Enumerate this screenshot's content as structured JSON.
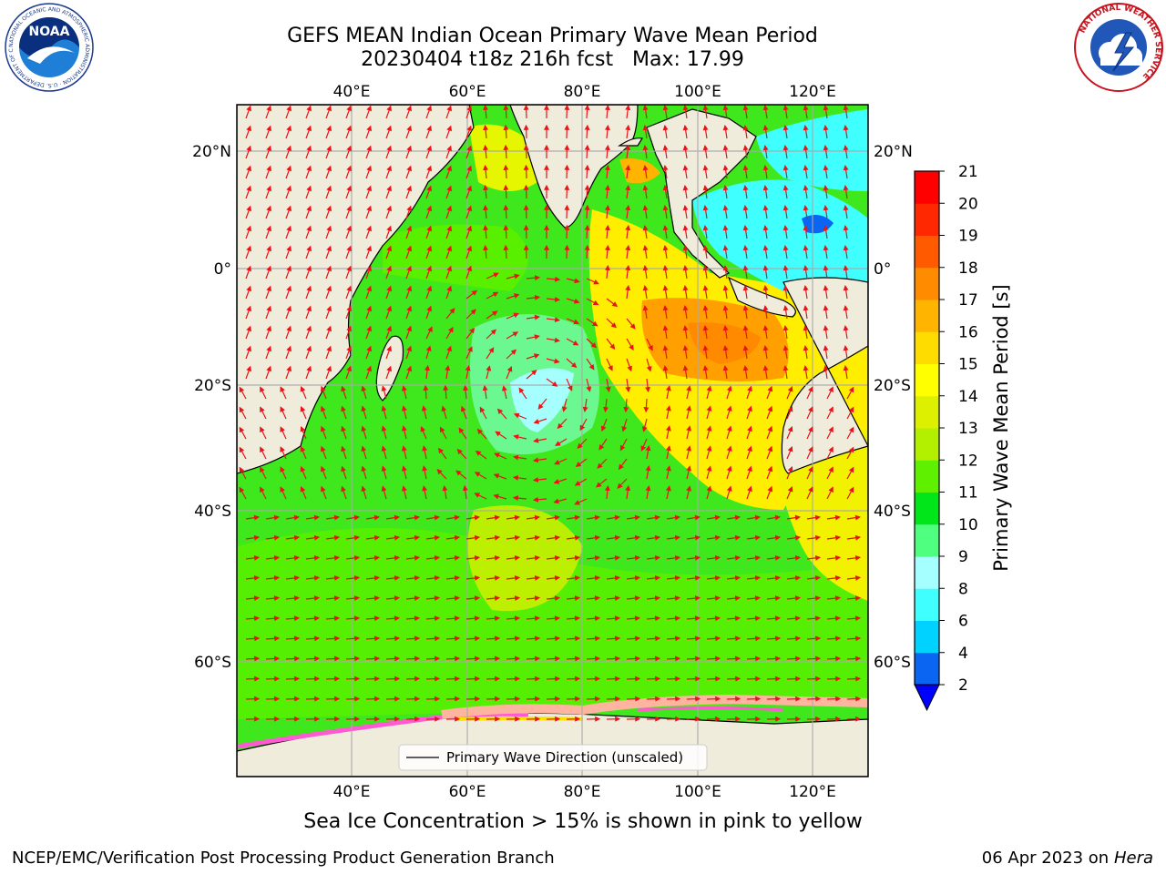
{
  "header": {
    "title_line1": "GEFS MEAN Indian Ocean Primary Wave Mean Period",
    "title_line2": "20230404 t18z 216h fcst   Max: 17.99"
  },
  "logos": {
    "left": "NOAA",
    "left_ring_text": "NATIONAL OCEANIC AND ATMOSPHERIC ADMINISTRATION · U.S. DEPARTMENT OF COMMERCE",
    "right_ring_text": "NATIONAL WEATHER SERVICE"
  },
  "map": {
    "lon_ticks": [
      "40°E",
      "60°E",
      "80°E",
      "100°E",
      "120°E"
    ],
    "lat_ticks": [
      "20°N",
      "0°",
      "20°S",
      "40°S",
      "60°S"
    ],
    "legend_label": "Primary Wave Direction (unscaled)",
    "land_color": "#efecdc",
    "arrow_color": "#e8141a"
  },
  "colorbar": {
    "label": "Primary Wave Mean Period [s]",
    "tick_labels": [
      "2",
      "4",
      "6",
      "8",
      "9",
      "10",
      "11",
      "12",
      "13",
      "14",
      "15",
      "16",
      "17",
      "18",
      "19",
      "20",
      "21"
    ],
    "colors": [
      "#0a66f2",
      "#00d2ff",
      "#40ffff",
      "#a6ffff",
      "#4fff80",
      "#00e61a",
      "#5ff000",
      "#b3f000",
      "#dcf000",
      "#ffff00",
      "#ffdc00",
      "#ffb400",
      "#ff8c00",
      "#ff5a00",
      "#ff2800",
      "#ff0000"
    ],
    "under_color": "#0000ff"
  },
  "footer": {
    "note": "Sea Ice Concentration > 15% is shown in pink to yellow",
    "credit": "NCEP/EMC/Verification Post Processing Product Generation Branch",
    "date": "06 Apr 2023 on ",
    "host": "Hera"
  }
}
